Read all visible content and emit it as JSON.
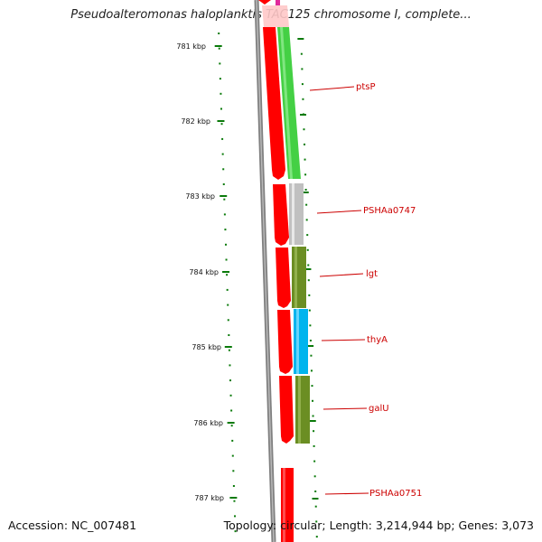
{
  "title": "Pseudoalteromonas haloplanktis TAC125 chromosome I, complete...",
  "footer": {
    "accession": "Accession: NC_007481",
    "summary": "Topology: circular; Length: 3,214,944 bp; Genes: 3,073"
  },
  "colors": {
    "backbone": "#808080",
    "tick": "#0a7a0a",
    "forward_gene": "#ff0000",
    "gene_label": "#cc0000",
    "ptsP": "#44d044",
    "PSHAa0747": "#c0c0c0",
    "lgt": "#6b8e23",
    "thyA": "#00b4ee",
    "galU": "#6b8e23"
  },
  "scale_labels": [
    "781 kbp",
    "782 kbp",
    "783 kbp",
    "784 kbp",
    "785 kbp",
    "786 kbp",
    "787 kbp"
  ],
  "genes": [
    {
      "name": "ptsP"
    },
    {
      "name": "PSHAa0747"
    },
    {
      "name": "lgt"
    },
    {
      "name": "thyA"
    },
    {
      "name": "galU"
    },
    {
      "name": "PSHAa0751"
    }
  ]
}
